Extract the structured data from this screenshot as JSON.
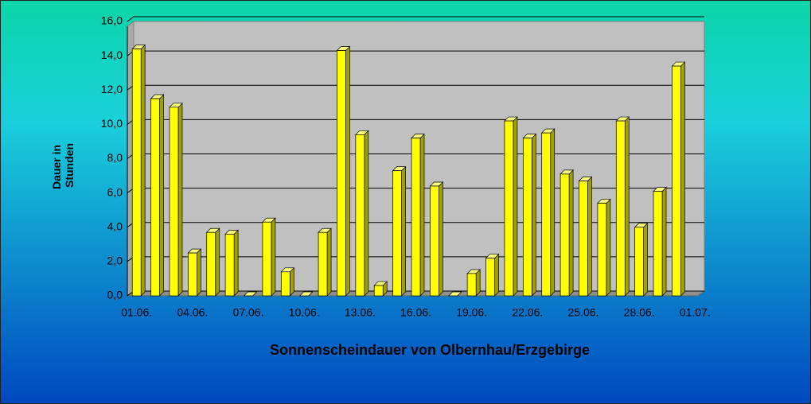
{
  "chart_data": {
    "type": "bar3d",
    "title": "Sonnenscheindauer von Olbernhau/Erzgebirge",
    "y_label": [
      "Dauer in",
      "Stunden"
    ],
    "categories": [
      "01.06.",
      null,
      null,
      "04.06.",
      null,
      null,
      "07.06.",
      null,
      null,
      "10.06.",
      null,
      null,
      "13.06.",
      null,
      null,
      "16.06.",
      null,
      null,
      "19.06.",
      null,
      null,
      "22.06.",
      null,
      null,
      "25.06.",
      null,
      null,
      "28.06.",
      null,
      null,
      "01.07."
    ],
    "values": [
      14.4,
      11.5,
      11.0,
      2.5,
      3.7,
      3.6,
      0,
      4.3,
      1.4,
      0,
      3.7,
      14.3,
      9.4,
      0.6,
      7.3,
      9.2,
      6.4,
      0,
      1.3,
      2.2,
      10.2,
      9.2,
      9.5,
      7.1,
      6.7,
      5.4,
      10.2,
      4.0,
      6.1,
      13.4,
      null
    ],
    "color": "#ffff00",
    "ylim": [
      0,
      16
    ],
    "yticks": [
      {
        "value": 0,
        "label": "0,0"
      },
      {
        "value": 2,
        "label": "2,0"
      },
      {
        "value": 4,
        "label": "4,0"
      },
      {
        "value": 6,
        "label": "6,0"
      },
      {
        "value": 8,
        "label": "8,0"
      },
      {
        "value": 10,
        "label": "10,0"
      },
      {
        "value": 12,
        "label": "12,0"
      },
      {
        "value": 14,
        "label": "14,0"
      },
      {
        "value": 16,
        "label": "16,0"
      }
    ],
    "grid": true
  }
}
